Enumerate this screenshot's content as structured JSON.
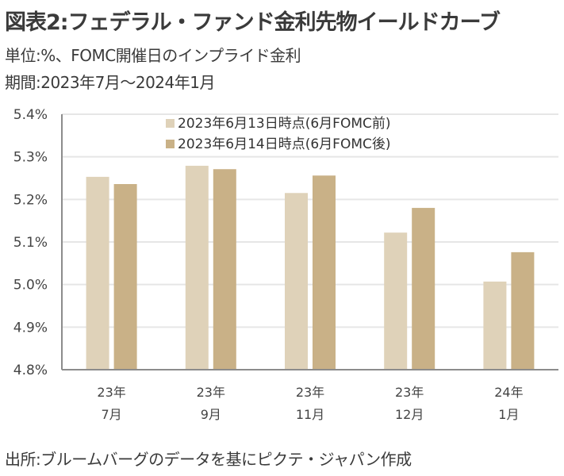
{
  "header": {
    "title": "図表2:フェデラル・ファンド金利先物イールドカーブ",
    "unit_line": "単位:%、FOMC開催日のインプライド金利",
    "period_line": "期間:2023年7月〜2024年1月"
  },
  "footer": {
    "source": "出所:ブルームバーグのデータを基にピクテ・ジャパン作成"
  },
  "chart_data": {
    "type": "bar",
    "title": "図表2:フェデラル・ファンド金利先物イールドカーブ",
    "xlabel": "",
    "ylabel": "",
    "categories": [
      {
        "line1": "23年",
        "line2": "7月"
      },
      {
        "line1": "23年",
        "line2": "9月"
      },
      {
        "line1": "23年",
        "line2": "11月"
      },
      {
        "line1": "23年",
        "line2": "12月"
      },
      {
        "line1": "24年",
        "line2": "1月"
      }
    ],
    "series": [
      {
        "name": "2023年6月13日時点(6月FOMC前)",
        "color": "#dfd2b9",
        "values": [
          5.253,
          5.279,
          5.215,
          5.122,
          5.007
        ]
      },
      {
        "name": "2023年6月14日時点(6月FOMC後)",
        "color": "#c9b187",
        "values": [
          5.236,
          5.271,
          5.256,
          5.18,
          5.076
        ]
      }
    ],
    "ylim": [
      4.8,
      5.4
    ],
    "yticks": [
      "4.8%",
      "4.9%",
      "5.0%",
      "5.1%",
      "5.2%",
      "5.3%",
      "5.4%"
    ],
    "ytick_values": [
      4.8,
      4.9,
      5.0,
      5.1,
      5.2,
      5.3,
      5.4
    ],
    "grid": true,
    "legend_position": "top-center"
  }
}
